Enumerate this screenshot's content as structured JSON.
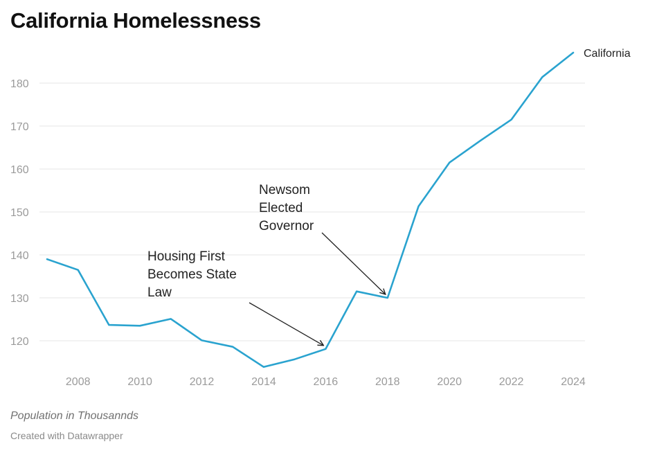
{
  "chart_data": {
    "type": "line",
    "title": "California Homelessness",
    "notes": "Population in Thousannds",
    "credit": "Created with Datawrapper",
    "xlim": [
      2007,
      2024
    ],
    "ylim": [
      113.5,
      187
    ],
    "x_ticks": [
      2008,
      2010,
      2012,
      2014,
      2016,
      2018,
      2020,
      2022,
      2024
    ],
    "y_ticks": [
      120,
      130,
      140,
      150,
      160,
      170,
      180
    ],
    "grid": true,
    "series": [
      {
        "name": "California",
        "color": "#2aa3cf",
        "x": [
          2007,
          2008,
          2009,
          2010,
          2011,
          2012,
          2013,
          2014,
          2015,
          2016,
          2017,
          2018,
          2019,
          2020,
          2021,
          2022,
          2023,
          2024
        ],
        "values": [
          139.0,
          136.5,
          123.7,
          123.5,
          125.1,
          120.1,
          118.6,
          113.9,
          115.7,
          118.1,
          131.5,
          130.0,
          151.3,
          161.5,
          166.6,
          171.5,
          181.4,
          187.1
        ]
      }
    ],
    "annotations": [
      {
        "name": "housing-first",
        "lines": [
          "Housing First",
          "Becomes State",
          "Law"
        ],
        "target": {
          "x": 2016,
          "y": 118.1
        }
      },
      {
        "name": "newsom",
        "lines": [
          "Newsom",
          "Elected",
          "Governor"
        ],
        "target": {
          "x": 2018,
          "y": 130.0
        }
      }
    ]
  }
}
